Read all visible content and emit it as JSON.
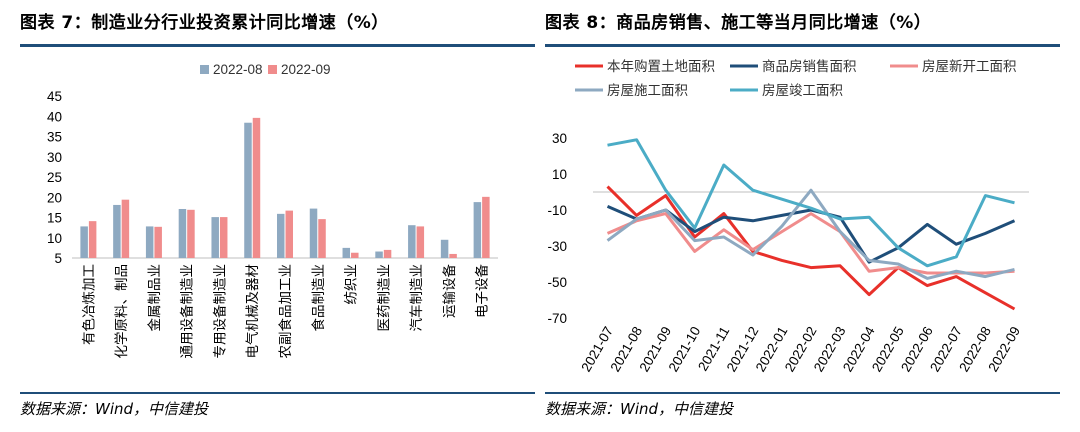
{
  "left": {
    "title": "图表 7：制造业分行业投资累计同比增速（%）",
    "source": "数据来源：Wind，中信建投",
    "chart_data": {
      "type": "bar",
      "categories": [
        "有色冶炼加工",
        "化学原料、制品",
        "金属制品业",
        "通用设备制造业",
        "专用设备制造业",
        "电气机械及器材",
        "农副食品加工业",
        "食品制造业",
        "纺织业",
        "医药制造业",
        "汽车制造业",
        "运输设备",
        "电子设备"
      ],
      "series": [
        {
          "name": "2022-08",
          "color": "#8ea9c1",
          "values": [
            12.8,
            18.1,
            12.8,
            17.1,
            15.1,
            38.4,
            15.9,
            17.2,
            7.5,
            6.6,
            13.1,
            9.5,
            18.8
          ]
        },
        {
          "name": "2022-09",
          "color": "#f08c8c",
          "values": [
            14.1,
            19.4,
            12.7,
            16.9,
            15.1,
            39.6,
            16.7,
            14.6,
            6.3,
            7.0,
            12.8,
            6.0,
            20.1
          ]
        }
      ],
      "ylim": [
        5,
        45
      ],
      "yticks": [
        5,
        10,
        15,
        20,
        25,
        30,
        35,
        40,
        45
      ],
      "legend": "top",
      "grid": false
    }
  },
  "right": {
    "title": "图表 8：商品房销售、施工等当月同比增速（%）",
    "source": "数据来源：Wind，中信建投",
    "chart_data": {
      "type": "line",
      "x": [
        "2021-07",
        "2021-08",
        "2021-09",
        "2021-10",
        "2021-11",
        "2021-12",
        "2022-01",
        "2022-02",
        "2022-03",
        "2022-04",
        "2022-05",
        "2022-06",
        "2022-07",
        "2022-08",
        "2022-09"
      ],
      "series": [
        {
          "name": "本年购置土地面积",
          "color": "#e8302a",
          "values": [
            3,
            -13,
            -2,
            -25,
            -12,
            -33,
            -38,
            -42,
            -41,
            -57,
            -42,
            -52,
            -47,
            -56,
            -65
          ]
        },
        {
          "name": "商品房销售面积",
          "color": "#1f4e79",
          "values": [
            -8,
            -15,
            -10,
            -22,
            -14,
            -16,
            -13,
            -10,
            -14,
            -39,
            -31,
            -18,
            -29,
            -23,
            -16
          ]
        },
        {
          "name": "房屋新开工面积",
          "color": "#f08c8c",
          "values": [
            -23,
            -16,
            -12,
            -33,
            -21,
            -32,
            -22,
            -12,
            -22,
            -44,
            -42,
            -45,
            -45,
            -45,
            -44
          ]
        },
        {
          "name": "房屋施工面积",
          "color": "#8ea9c1",
          "values": [
            -27,
            -15,
            -10,
            -27,
            -25,
            -35,
            -19,
            1,
            -22,
            -38,
            -40,
            -48,
            -44,
            -47,
            -43
          ]
        },
        {
          "name": "房屋竣工面积",
          "color": "#4bacc6",
          "values": [
            26,
            29,
            1,
            -20,
            15,
            1,
            -4,
            -9,
            -15,
            -14,
            -31,
            -41,
            -36,
            -2,
            -6
          ]
        }
      ],
      "ylim": [
        -70,
        30
      ],
      "yticks": [
        -70,
        -50,
        -30,
        -10,
        10,
        30
      ],
      "legend": "top",
      "grid": false
    }
  }
}
